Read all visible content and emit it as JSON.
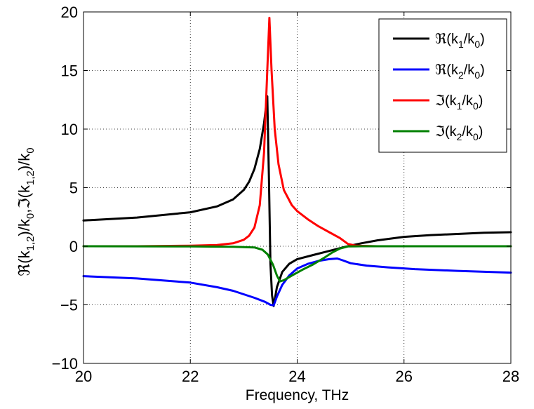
{
  "chart_data": {
    "type": "line",
    "title": "",
    "xlabel": "Frequency, THz",
    "ylabel": "ℜ(k_{1,2})/k_0,ℑ(k_{1,2})/k_0",
    "xlim": [
      20,
      28
    ],
    "ylim": [
      -10,
      20
    ],
    "xticks": [
      20,
      22,
      24,
      26,
      28
    ],
    "yticks": [
      -10,
      -5,
      0,
      5,
      10,
      15,
      20
    ],
    "xtick_labels": [
      "20",
      "22",
      "24",
      "26",
      "28"
    ],
    "ytick_labels": [
      "−10",
      "−5",
      "0",
      "5",
      "10",
      "15",
      "20"
    ],
    "grid": true,
    "legend_position": "top-right",
    "series": [
      {
        "name": "ℜ(k1/k0)",
        "color": "#000000",
        "points": [
          [
            20,
            2.2
          ],
          [
            21,
            2.45
          ],
          [
            22,
            2.9
          ],
          [
            22.5,
            3.4
          ],
          [
            22.8,
            4.0
          ],
          [
            23.0,
            4.8
          ],
          [
            23.1,
            5.5
          ],
          [
            23.2,
            6.6
          ],
          [
            23.3,
            8.3
          ],
          [
            23.38,
            10.5
          ],
          [
            23.44,
            12.8
          ],
          [
            23.47,
            6.0
          ],
          [
            23.5,
            -1.5
          ],
          [
            23.53,
            -4.2
          ],
          [
            23.56,
            -5.1
          ],
          [
            23.62,
            -3.5
          ],
          [
            23.72,
            -2.2
          ],
          [
            23.85,
            -1.5
          ],
          [
            24.0,
            -1.1
          ],
          [
            24.3,
            -0.75
          ],
          [
            24.6,
            -0.4
          ],
          [
            24.9,
            -0.05
          ],
          [
            25.2,
            0.25
          ],
          [
            25.5,
            0.5
          ],
          [
            26.0,
            0.8
          ],
          [
            26.5,
            0.95
          ],
          [
            27.0,
            1.05
          ],
          [
            27.5,
            1.15
          ],
          [
            28,
            1.2
          ]
        ]
      },
      {
        "name": "ℜ(k2/k0)",
        "color": "#0000ff",
        "points": [
          [
            20,
            -2.55
          ],
          [
            21,
            -2.75
          ],
          [
            22,
            -3.1
          ],
          [
            22.5,
            -3.5
          ],
          [
            22.8,
            -3.8
          ],
          [
            23.0,
            -4.1
          ],
          [
            23.2,
            -4.4
          ],
          [
            23.4,
            -4.75
          ],
          [
            23.5,
            -5.0
          ],
          [
            23.56,
            -5.05
          ],
          [
            23.62,
            -4.3
          ],
          [
            23.72,
            -3.3
          ],
          [
            23.85,
            -2.5
          ],
          [
            24.0,
            -1.9
          ],
          [
            24.2,
            -1.5
          ],
          [
            24.4,
            -1.25
          ],
          [
            24.6,
            -1.1
          ],
          [
            24.75,
            -1.05
          ],
          [
            24.85,
            -1.2
          ],
          [
            25.0,
            -1.45
          ],
          [
            25.3,
            -1.65
          ],
          [
            25.7,
            -1.8
          ],
          [
            26.2,
            -1.95
          ],
          [
            27,
            -2.1
          ],
          [
            28,
            -2.25
          ]
        ]
      },
      {
        "name": "ℑ(k1/k0)",
        "color": "#ff0000",
        "points": [
          [
            20,
            0.0
          ],
          [
            21,
            0.0
          ],
          [
            22,
            0.05
          ],
          [
            22.5,
            0.1
          ],
          [
            22.8,
            0.25
          ],
          [
            23.0,
            0.55
          ],
          [
            23.1,
            0.9
          ],
          [
            23.2,
            1.6
          ],
          [
            23.3,
            3.5
          ],
          [
            23.38,
            8.0
          ],
          [
            23.44,
            15.0
          ],
          [
            23.48,
            19.5
          ],
          [
            23.52,
            15.0
          ],
          [
            23.58,
            10.0
          ],
          [
            23.65,
            7.0
          ],
          [
            23.75,
            4.8
          ],
          [
            23.9,
            3.5
          ],
          [
            24.0,
            3.0
          ],
          [
            24.2,
            2.3
          ],
          [
            24.4,
            1.7
          ],
          [
            24.6,
            1.2
          ],
          [
            24.8,
            0.7
          ],
          [
            24.95,
            0.2
          ],
          [
            25.1,
            0.05
          ],
          [
            25.5,
            0.0
          ],
          [
            26,
            0.0
          ],
          [
            28,
            0.0
          ]
        ]
      },
      {
        "name": "ℑ(k2/k0)",
        "color": "#008000",
        "points": [
          [
            20,
            0.0
          ],
          [
            22,
            -0.02
          ],
          [
            22.8,
            -0.05
          ],
          [
            23.2,
            -0.1
          ],
          [
            23.35,
            -0.3
          ],
          [
            23.45,
            -0.7
          ],
          [
            23.55,
            -1.6
          ],
          [
            23.62,
            -2.5
          ],
          [
            23.68,
            -3.0
          ],
          [
            23.75,
            -2.9
          ],
          [
            23.9,
            -2.5
          ],
          [
            24.1,
            -2.0
          ],
          [
            24.3,
            -1.55
          ],
          [
            24.5,
            -1.0
          ],
          [
            24.65,
            -0.55
          ],
          [
            24.8,
            -0.2
          ],
          [
            24.95,
            -0.02
          ],
          [
            25.2,
            0.0
          ],
          [
            26,
            0.0
          ],
          [
            28,
            0.0
          ]
        ]
      }
    ]
  }
}
